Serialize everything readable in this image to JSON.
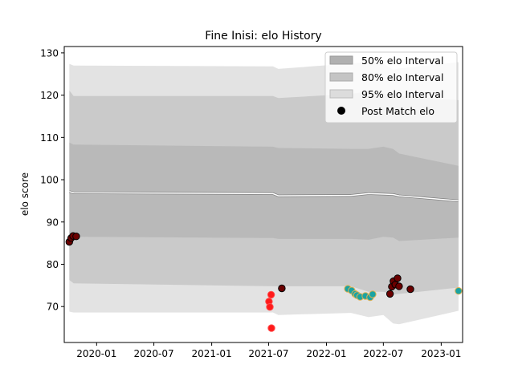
{
  "chart_data": {
    "type": "line",
    "title": "Fine Inisi: elo History",
    "xlabel": "",
    "ylabel": "elo score",
    "xlim": [
      "2019-09-20",
      "2023-03-10"
    ],
    "ylim": [
      61.5,
      131.5
    ],
    "x_ticks": [
      "2020-01",
      "2020-07",
      "2021-01",
      "2021-07",
      "2022-01",
      "2022-07",
      "2023-01"
    ],
    "y_ticks": [
      70,
      80,
      90,
      100,
      110,
      120,
      130
    ],
    "legend_position": "top-right",
    "legend": [
      {
        "label": "50% elo Interval",
        "kind": "band",
        "color": "#b0b0b0"
      },
      {
        "label": "80% elo Interval",
        "kind": "band",
        "color": "#c4c4c4"
      },
      {
        "label": "95% elo Interval",
        "kind": "band",
        "color": "#dcdcdc"
      },
      {
        "label": "Post Match elo",
        "kind": "marker",
        "color": "#000000"
      }
    ],
    "band_x": [
      "2019-10-06",
      "2019-10-20",
      "2021-07-15",
      "2021-08-01",
      "2022-03-20",
      "2022-05-15",
      "2022-07-01",
      "2022-08-01",
      "2022-08-20",
      "2023-02-25"
    ],
    "mean_line": [
      97.2,
      96.9,
      96.7,
      96.2,
      96.3,
      96.7,
      96.6,
      96.5,
      96.2,
      95.0
    ],
    "band_95": {
      "lower": [
        68.8,
        68.6,
        68.6,
        68.0,
        68.5,
        67.5,
        68.0,
        66.0,
        65.8,
        69.0
      ],
      "upper": [
        127.4,
        127.0,
        126.8,
        126.2,
        127.5,
        127.8,
        127.5,
        126.0,
        126.3,
        127.8
      ]
    },
    "band_80": {
      "lower": [
        76.3,
        75.5,
        74.8,
        74.8,
        74.8,
        73.5,
        73.5,
        72.8,
        73.0,
        74.5
      ],
      "upper": [
        121.1,
        119.8,
        119.8,
        119.3,
        120.3,
        120.8,
        120.5,
        119.5,
        119.8,
        118.8
      ]
    },
    "band_50": {
      "lower": [
        86.8,
        86.5,
        86.2,
        86.0,
        86.0,
        85.8,
        86.5,
        86.3,
        85.5,
        86.3
      ],
      "upper": [
        108.8,
        108.3,
        107.8,
        107.5,
        107.3,
        107.3,
        107.8,
        107.3,
        106.2,
        103.3
      ]
    },
    "series": [
      {
        "name": "Post Match elo",
        "points": [
          {
            "x": "2019-10-06",
            "y": 85.3,
            "kind": "win"
          },
          {
            "x": "2019-10-12",
            "y": 86.2,
            "kind": "win"
          },
          {
            "x": "2019-10-18",
            "y": 86.7,
            "kind": "win"
          },
          {
            "x": "2019-10-28",
            "y": 86.6,
            "kind": "win"
          },
          {
            "x": "2021-07-02",
            "y": 71.2,
            "kind": "loss"
          },
          {
            "x": "2021-07-05",
            "y": 69.9,
            "kind": "loss"
          },
          {
            "x": "2021-07-09",
            "y": 72.8,
            "kind": "loss"
          },
          {
            "x": "2021-07-10",
            "y": 64.9,
            "kind": "loss"
          },
          {
            "x": "2021-08-12",
            "y": 74.3,
            "kind": "win"
          },
          {
            "x": "2022-03-10",
            "y": 74.2,
            "kind": "draw"
          },
          {
            "x": "2022-03-22",
            "y": 73.8,
            "kind": "draw"
          },
          {
            "x": "2022-04-02",
            "y": 73.0,
            "kind": "draw"
          },
          {
            "x": "2022-04-08",
            "y": 72.7,
            "kind": "draw"
          },
          {
            "x": "2022-04-18",
            "y": 72.3,
            "kind": "draw"
          },
          {
            "x": "2022-05-05",
            "y": 72.5,
            "kind": "draw"
          },
          {
            "x": "2022-05-20",
            "y": 72.2,
            "kind": "draw"
          },
          {
            "x": "2022-05-28",
            "y": 72.9,
            "kind": "draw"
          },
          {
            "x": "2022-07-22",
            "y": 73.0,
            "kind": "win"
          },
          {
            "x": "2022-07-28",
            "y": 74.7,
            "kind": "win"
          },
          {
            "x": "2022-08-02",
            "y": 76.0,
            "kind": "win"
          },
          {
            "x": "2022-08-08",
            "y": 75.2,
            "kind": "win"
          },
          {
            "x": "2022-08-15",
            "y": 76.7,
            "kind": "win"
          },
          {
            "x": "2022-08-20",
            "y": 74.8,
            "kind": "win"
          },
          {
            "x": "2022-09-25",
            "y": 74.1,
            "kind": "win"
          },
          {
            "x": "2023-02-25",
            "y": 73.7,
            "kind": "draw"
          }
        ]
      }
    ],
    "marker_styles": {
      "win": {
        "fill": "#6b0000",
        "stroke": "#000000"
      },
      "loss": {
        "fill": "#ff1a1a",
        "stroke": "#ff4d4d"
      },
      "draw": {
        "fill": "#1aa3a3",
        "stroke": "#e0b050"
      }
    },
    "colors": {
      "mean_line": "#ffffff",
      "band_edge": "#9a9a9a",
      "frame": "#000000"
    }
  }
}
